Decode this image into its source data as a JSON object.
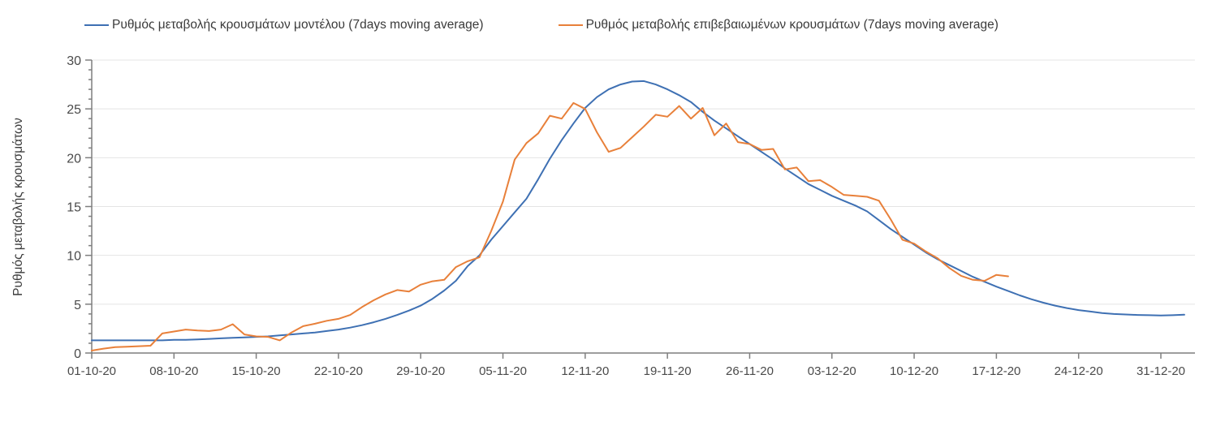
{
  "chart_data": {
    "type": "line",
    "title": "",
    "ylabel": "Ρυθμός μεταβολής κρουσμάτων",
    "xlabel": "",
    "ylim": [
      0,
      30
    ],
    "y_ticks": [
      0,
      5,
      10,
      15,
      20,
      25,
      30
    ],
    "y_minor_tick_interval": 1,
    "grid": "horizontal-major-only",
    "legend_position": "top",
    "axis_color": "#7f7f7f",
    "gridline_color": "#e4e4e4",
    "x_tick_labels": [
      "01-10-20",
      "08-10-20",
      "15-10-20",
      "22-10-20",
      "29-10-20",
      "05-11-20",
      "12-11-20",
      "19-11-20",
      "26-11-20",
      "03-12-20",
      "10-12-20",
      "17-12-20",
      "24-12-20",
      "31-12-20"
    ],
    "x_tick_days": [
      0,
      7,
      14,
      21,
      28,
      35,
      42,
      49,
      56,
      63,
      70,
      77,
      84,
      91
    ],
    "series": [
      {
        "name": "Ρυθμός μεταβολής κρουσμάτων μοντέλου (7days moving average)",
        "color": "#3e70b3",
        "start_day": 0,
        "values": [
          1.3,
          1.3,
          1.3,
          1.3,
          1.3,
          1.3,
          1.3,
          1.35,
          1.35,
          1.4,
          1.45,
          1.5,
          1.55,
          1.6,
          1.65,
          1.7,
          1.8,
          1.9,
          2.0,
          2.1,
          2.25,
          2.4,
          2.6,
          2.85,
          3.15,
          3.5,
          3.9,
          4.35,
          4.85,
          5.55,
          6.4,
          7.4,
          8.9,
          10.0,
          11.6,
          13.0,
          14.4,
          15.8,
          17.8,
          19.9,
          21.8,
          23.5,
          25.1,
          26.2,
          27.0,
          27.5,
          27.8,
          27.85,
          27.5,
          27.0,
          26.4,
          25.7,
          24.7,
          23.8,
          23.0,
          22.2,
          21.4,
          20.6,
          19.8,
          18.9,
          18.1,
          17.3,
          16.7,
          16.1,
          15.6,
          15.1,
          14.5,
          13.6,
          12.7,
          11.9,
          11.1,
          10.3,
          9.6,
          9.0,
          8.4,
          7.8,
          7.3,
          6.8,
          6.35,
          5.9,
          5.5,
          5.15,
          4.85,
          4.6,
          4.4,
          4.25,
          4.1,
          4.0,
          3.95,
          3.9,
          3.87,
          3.85,
          3.87,
          3.92
        ]
      },
      {
        "name": "Ρυθμός μεταβολής επιβεβαιωμένων κρουσμάτων (7days moving average)",
        "color": "#e8803a",
        "start_day": 0,
        "values": [
          0.25,
          0.45,
          0.6,
          0.65,
          0.7,
          0.75,
          2.0,
          2.2,
          2.4,
          2.3,
          2.25,
          2.4,
          2.95,
          1.9,
          1.7,
          1.65,
          1.3,
          2.1,
          2.75,
          3.0,
          3.3,
          3.5,
          3.9,
          4.7,
          5.4,
          6.0,
          6.45,
          6.3,
          7.0,
          7.35,
          7.5,
          8.8,
          9.4,
          9.8,
          12.5,
          15.5,
          19.8,
          21.5,
          22.5,
          24.3,
          24.0,
          25.6,
          25.0,
          22.6,
          20.6,
          21.0,
          22.1,
          23.2,
          24.4,
          24.2,
          25.3,
          24.0,
          25.1,
          22.3,
          23.5,
          21.6,
          21.4,
          20.8,
          20.9,
          18.8,
          19.0,
          17.6,
          17.7,
          17.0,
          16.2,
          16.1,
          16.0,
          15.6,
          13.7,
          11.6,
          11.2,
          10.4,
          9.7,
          8.7,
          7.9,
          7.5,
          7.4,
          8.0,
          7.85
        ]
      }
    ]
  }
}
